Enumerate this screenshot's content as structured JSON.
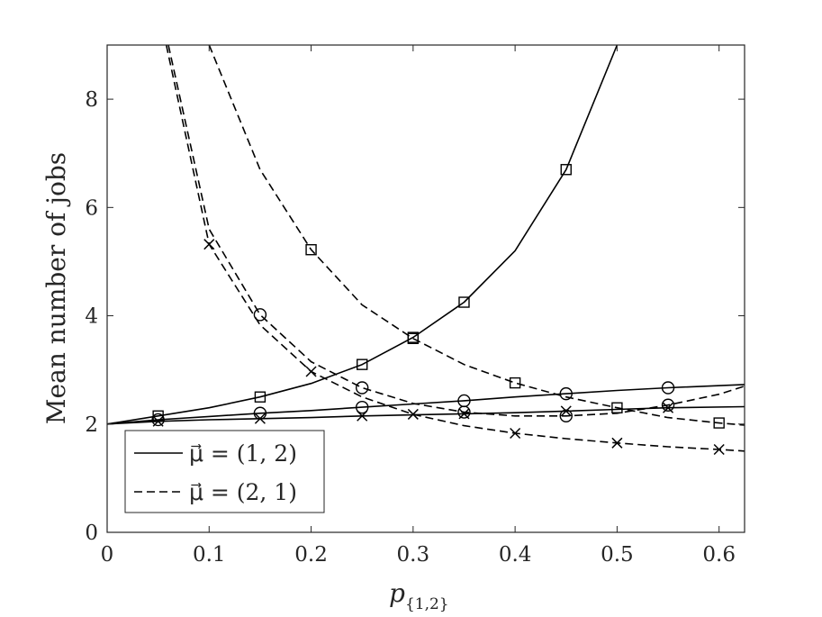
{
  "chart_data": {
    "type": "line",
    "xlabel": "p",
    "xlabel_subscript": "{1,2}",
    "ylabel": "Mean number of jobs",
    "xlim": [
      0,
      0.625
    ],
    "ylim": [
      0,
      9
    ],
    "x_ticks": [
      0,
      0.1,
      0.2,
      0.3,
      0.4,
      0.5,
      0.6
    ],
    "x_tick_labels": [
      "0",
      "0.1",
      "0.2",
      "0.3",
      "0.4",
      "0.5",
      "0.6"
    ],
    "y_ticks": [
      0,
      2,
      4,
      6,
      8
    ],
    "y_tick_labels": [
      "0",
      "2",
      "4",
      "6",
      "8"
    ],
    "grid": false,
    "legend_position": "bottom-left",
    "legend": [
      {
        "label": "μ⃗ = (1, 2)",
        "style": "solid"
      },
      {
        "label": "μ⃗ = (2, 1)",
        "style": "dashed"
      }
    ],
    "series": [
      {
        "style": "solid",
        "marker": "square",
        "x": [
          0,
          0.05,
          0.1,
          0.15,
          0.2,
          0.25,
          0.3,
          0.35,
          0.4,
          0.45,
          0.5
        ],
        "y": [
          2.0,
          2.15,
          2.3,
          2.5,
          2.75,
          3.1,
          3.6,
          4.25,
          5.2,
          6.7,
          9.0
        ]
      },
      {
        "style": "solid",
        "marker": "circle",
        "x": [
          0,
          0.05,
          0.1,
          0.15,
          0.2,
          0.25,
          0.3,
          0.35,
          0.4,
          0.45,
          0.5,
          0.55,
          0.625
        ],
        "y": [
          2.0,
          2.08,
          2.14,
          2.2,
          2.25,
          2.31,
          2.37,
          2.43,
          2.5,
          2.56,
          2.62,
          2.67,
          2.73
        ]
      },
      {
        "style": "solid",
        "marker": "x",
        "x": [
          0,
          0.05,
          0.1,
          0.15,
          0.2,
          0.25,
          0.3,
          0.35,
          0.4,
          0.45,
          0.5,
          0.55,
          0.625
        ],
        "y": [
          2.0,
          2.05,
          2.08,
          2.1,
          2.12,
          2.15,
          2.17,
          2.19,
          2.21,
          2.24,
          2.27,
          2.3,
          2.32
        ]
      },
      {
        "style": "dashed",
        "marker": "square",
        "x": [
          0.1,
          0.15,
          0.2,
          0.25,
          0.3,
          0.35,
          0.4,
          0.45,
          0.5,
          0.55,
          0.6,
          0.625
        ],
        "y": [
          9.0,
          6.7,
          5.22,
          4.2,
          3.58,
          3.1,
          2.76,
          2.5,
          2.3,
          2.12,
          2.02,
          1.98
        ]
      },
      {
        "style": "dashed",
        "marker": "circle",
        "x": [
          0.06,
          0.1,
          0.15,
          0.2,
          0.25,
          0.3,
          0.35,
          0.4,
          0.45,
          0.5,
          0.55,
          0.6,
          0.625
        ],
        "y": [
          9.0,
          5.6,
          4.02,
          3.15,
          2.67,
          2.38,
          2.22,
          2.15,
          2.15,
          2.2,
          2.35,
          2.55,
          2.7
        ]
      },
      {
        "style": "dashed",
        "marker": "x",
        "x": [
          0.058,
          0.1,
          0.15,
          0.2,
          0.25,
          0.3,
          0.35,
          0.4,
          0.45,
          0.5,
          0.55,
          0.6,
          0.625
        ],
        "y": [
          9.0,
          5.32,
          3.83,
          2.97,
          2.5,
          2.18,
          1.97,
          1.83,
          1.73,
          1.65,
          1.58,
          1.53,
          1.5
        ]
      }
    ],
    "markers": [
      {
        "shape": "square",
        "x": [
          0.05,
          0.15,
          0.25,
          0.3,
          0.35,
          0.45
        ],
        "y": [
          2.15,
          2.5,
          3.1,
          3.6,
          4.25,
          6.7
        ]
      },
      {
        "shape": "circle",
        "x": [
          0.05,
          0.15,
          0.25,
          0.35,
          0.45,
          0.55
        ],
        "y": [
          2.08,
          2.2,
          2.31,
          2.43,
          2.56,
          2.67
        ]
      },
      {
        "shape": "x",
        "x": [
          0.05,
          0.15,
          0.25,
          0.35,
          0.45,
          0.55
        ],
        "y": [
          2.05,
          2.1,
          2.15,
          2.19,
          2.24,
          2.3
        ]
      },
      {
        "shape": "square",
        "x": [
          0.2,
          0.3,
          0.4,
          0.5,
          0.6
        ],
        "y": [
          5.22,
          3.58,
          2.76,
          2.3,
          2.02
        ]
      },
      {
        "shape": "circle",
        "x": [
          0.15,
          0.25,
          0.35,
          0.45,
          0.55
        ],
        "y": [
          4.02,
          2.67,
          2.22,
          2.15,
          2.35
        ]
      },
      {
        "shape": "x",
        "x": [
          0.1,
          0.2,
          0.3,
          0.4,
          0.5,
          0.6
        ],
        "y": [
          5.32,
          2.97,
          2.18,
          1.83,
          1.65,
          1.53
        ]
      }
    ]
  }
}
